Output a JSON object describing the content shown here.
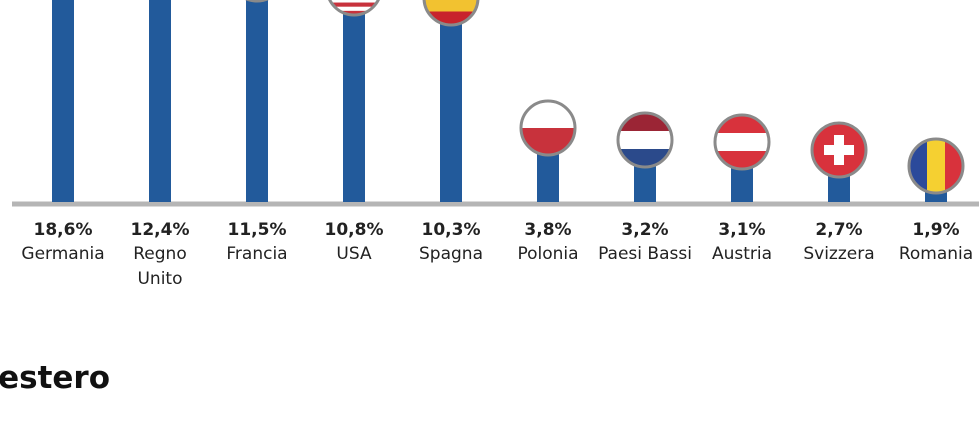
{
  "chart_data": {
    "type": "bar",
    "title": "l'estero",
    "categories": [
      "Germania",
      "Regno Unito",
      "Francia",
      "USA",
      "Spagna",
      "Polonia",
      "Paesi Bassi",
      "Austria",
      "Svizzera",
      "Romania"
    ],
    "values": [
      18.6,
      12.4,
      11.5,
      10.8,
      10.3,
      3.8,
      3.2,
      3.1,
      2.7,
      1.9
    ],
    "value_labels": [
      "18,6%",
      "12,4%",
      "11,5%",
      "10,8%",
      "10,3%",
      "3,8%",
      "3,2%",
      "3,1%",
      "2,7%",
      "1,9%"
    ],
    "color": "#225a9b"
  }
}
